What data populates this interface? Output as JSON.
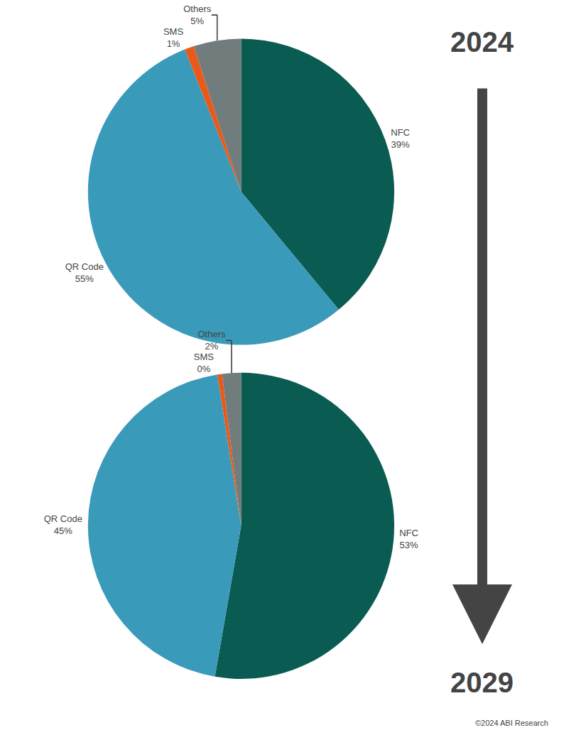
{
  "chart_data": [
    {
      "type": "pie",
      "title": "2024",
      "categories": [
        "NFC",
        "QR Code",
        "SMS",
        "Others"
      ],
      "values": [
        39,
        55,
        1,
        5
      ],
      "value_labels": [
        "39%",
        "55%",
        "1%",
        "5%"
      ],
      "colors": [
        "#0a5c52",
        "#3a9aba",
        "#e85a1c",
        "#717c7d"
      ],
      "data_labels": true
    },
    {
      "type": "pie",
      "title": "2029",
      "categories": [
        "NFC",
        "QR Code",
        "SMS",
        "Others"
      ],
      "values": [
        53,
        45,
        0.5,
        2
      ],
      "value_labels": [
        "53%",
        "45%",
        "0%",
        "2%"
      ],
      "colors": [
        "#0a5c52",
        "#3a9aba",
        "#e85a1c",
        "#717c7d"
      ],
      "data_labels": true,
      "annotations": [
        "©2024 ABI Research"
      ]
    }
  ]
}
